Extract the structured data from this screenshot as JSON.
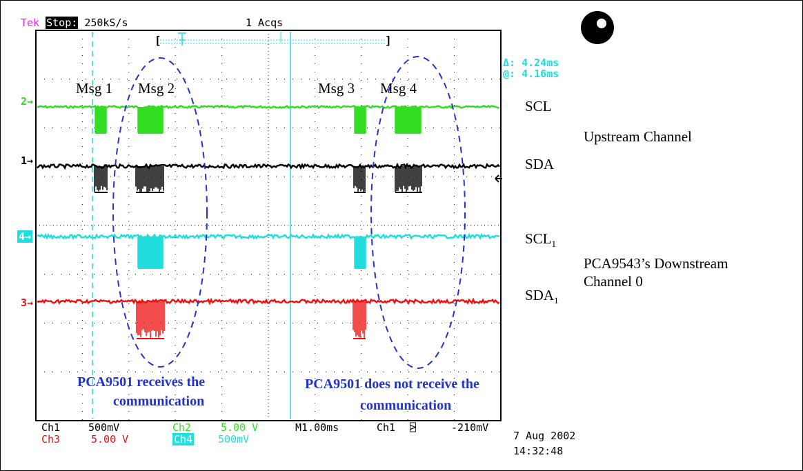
{
  "header": {
    "brand": "Tek",
    "mode": "Stop:",
    "rate": "250kS/s",
    "acqs": "1 Acqs"
  },
  "cursor": {
    "delta": "Δ: 4.24ms",
    "at": "@: 4.16ms"
  },
  "markers": {
    "ch2": "2→",
    "ch1": "1→",
    "ch4": "4→",
    "ch3": "3→"
  },
  "messages": [
    "Msg 1",
    "Msg 2",
    "Msg 3",
    "Msg 4"
  ],
  "signals": {
    "scl": "SCL",
    "sda": "SDA",
    "scl1": "SCL",
    "sda1": "SDA",
    "sub": "1"
  },
  "groups": {
    "upstream": "Upstream Channel",
    "downstream_line1": "PCA9543’s Downstream",
    "downstream_line2": "Channel 0"
  },
  "captions": {
    "left_line1": "PCA9501 receives the",
    "left_line2": "communication",
    "right_line1": "PCA9501 does not receive the",
    "right_line2": "communication"
  },
  "readout": {
    "ch1": "Ch1",
    "ch1_val": "500mV",
    "ch2": "Ch2",
    "ch2_val": "5.00 V",
    "timebase": "M1.00ms",
    "trig_src": "Ch1",
    "trig_slope": "⍄",
    "trig_level": "-210mV",
    "ch3": "Ch3",
    "ch3_val": "5.00 V",
    "ch4": "Ch4",
    "ch4_val": "500mV",
    "date": "7 Aug 2002",
    "time": "14:32:48"
  },
  "colors": {
    "ch1": "#000000",
    "ch2": "#33dd22",
    "ch3": "#ee1111",
    "ch4": "#22dddd",
    "annotation": "#2233cc",
    "brand": "#ee22ee"
  }
}
